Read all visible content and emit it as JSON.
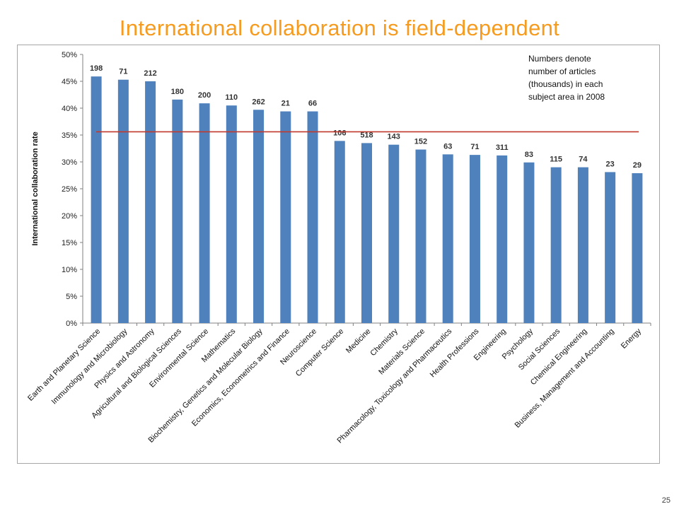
{
  "slide": {
    "title": "International collaboration is field-dependent",
    "page_number": "25"
  },
  "colors": {
    "title": "#f59b1f",
    "bar": "#4f81bd",
    "average_line": "#c0392b",
    "frame": "#a6a6a6"
  },
  "chart_data": {
    "type": "bar",
    "ylabel": "International collaboration rate",
    "ylim": [
      0,
      0.5
    ],
    "yticks": [
      "0%",
      "5%",
      "10%",
      "15%",
      "20%",
      "25%",
      "30%",
      "35%",
      "40%",
      "45%",
      "50%"
    ],
    "grid": false,
    "annotation_lines": [
      "Numbers denote",
      "number of articles",
      "(thousands)  in each",
      "subject area in 2008"
    ],
    "reference_line": 0.356,
    "categories": [
      "Earth and Planetary Science",
      "Immunology and Microbiology",
      "Physics and Astronomy",
      "Agricultural and Biological Sciences",
      "Environmental Science",
      "Mathematics",
      "Biochemistry, Genetics and Molecular Biology",
      "Economics, Econometrics and Finance",
      "Neuroscience",
      "Computer Science",
      "Medicine",
      "Chemistry",
      "Materials Science",
      "Pharmacology, Toxicology and Pharmaceutics",
      "Health Professions",
      "Engineering",
      "Psychology",
      "Social Sciences",
      "Chemical Engineering",
      "Business, Management and Accounting",
      "Energy"
    ],
    "values": [
      0.459,
      0.453,
      0.45,
      0.416,
      0.409,
      0.405,
      0.397,
      0.394,
      0.394,
      0.339,
      0.335,
      0.332,
      0.323,
      0.314,
      0.313,
      0.312,
      0.299,
      0.29,
      0.29,
      0.281,
      0.279
    ],
    "data_labels": [
      "198",
      "71",
      "212",
      "180",
      "200",
      "110",
      "262",
      "21",
      "66",
      "106",
      "518",
      "143",
      "152",
      "63",
      "71",
      "311",
      "83",
      "115",
      "74",
      "23",
      "29"
    ]
  }
}
